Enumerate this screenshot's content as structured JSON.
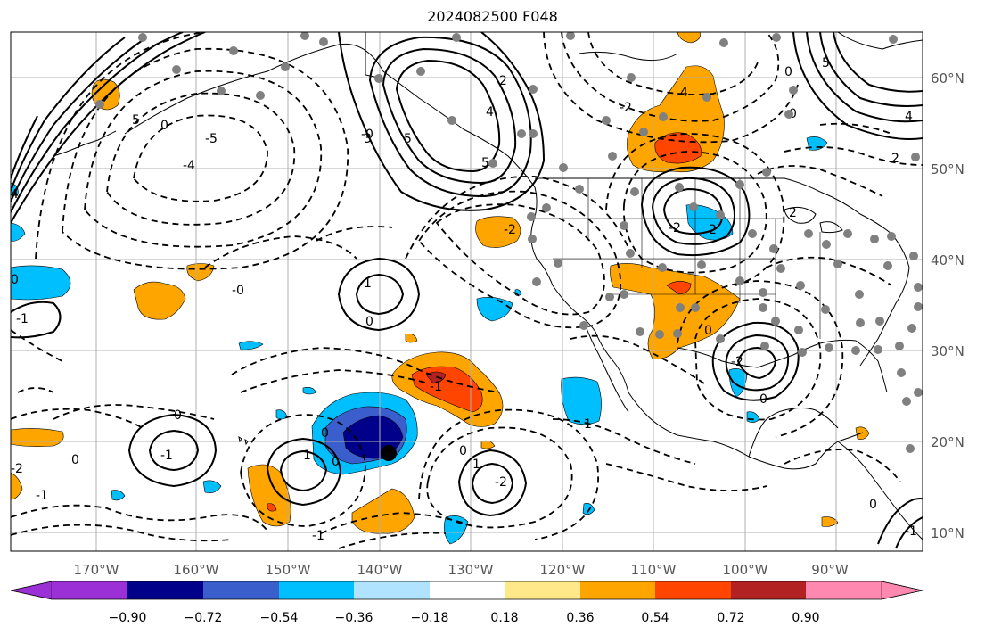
{
  "title": "2024082500 F048",
  "lon_ticks": [
    "170°W",
    "160°W",
    "150°W",
    "140°W",
    "130°W",
    "120°W",
    "110°W",
    "100°W",
    "90°W"
  ],
  "lat_ticks": [
    "60°N",
    "50°N",
    "40°N",
    "30°N",
    "20°N",
    "10°N"
  ],
  "colorbar": {
    "tick_labels": [
      "−0.90",
      "−0.72",
      "−0.54",
      "−0.36",
      "−0.18",
      "0.18",
      "0.36",
      "0.54",
      "0.72",
      "0.90"
    ],
    "colors": [
      "#9b30d6",
      "#00008b",
      "#3a5fcd",
      "#00bfff",
      "#afe3ff",
      "#ffffff",
      "#ffe88a",
      "#ffa500",
      "#ff4500",
      "#b22222",
      "#ff88b0"
    ]
  },
  "contour_labels": [
    "5",
    "4",
    "3",
    "2",
    "1",
    "0",
    "-1",
    "-2",
    "-3",
    "-4",
    "-5"
  ]
}
